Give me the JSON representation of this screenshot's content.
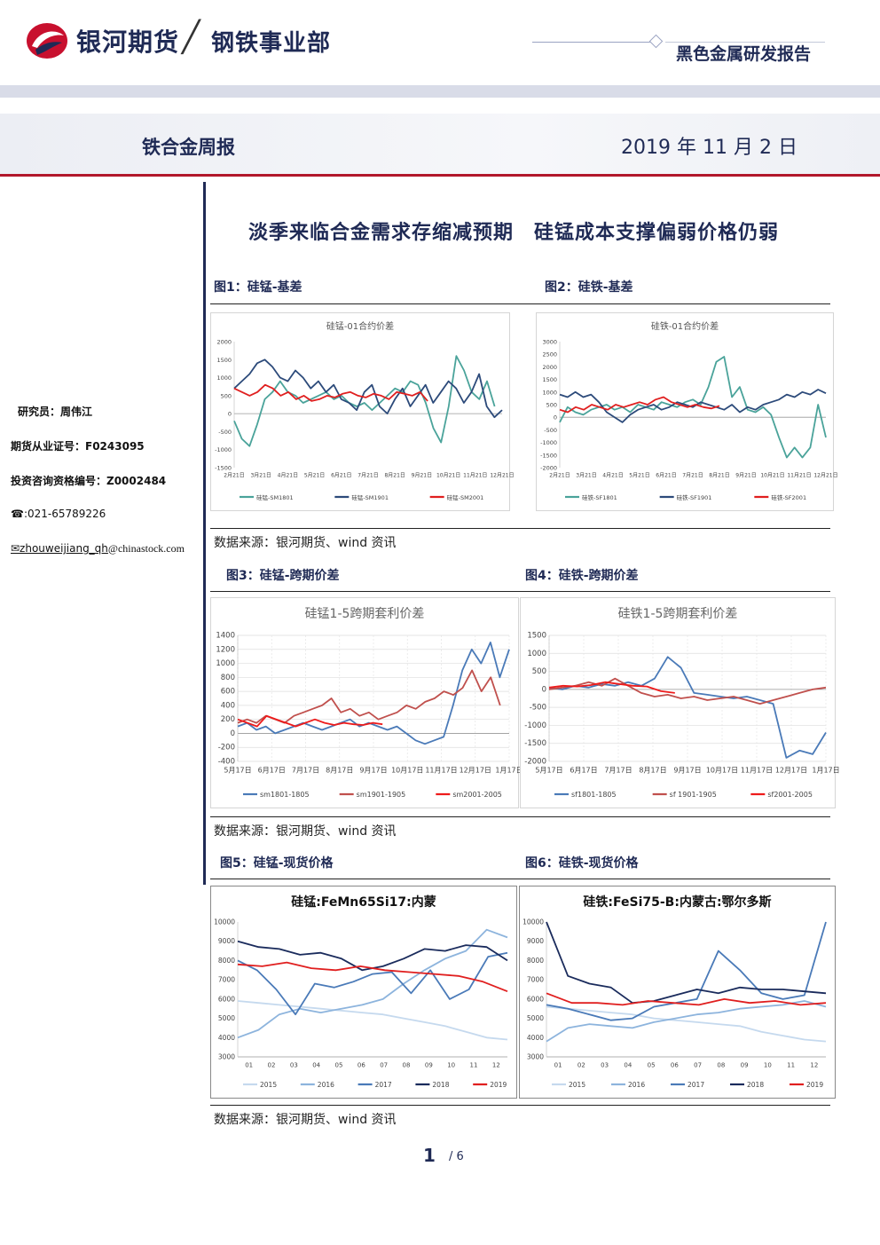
{
  "header": {
    "brand": "银河期货",
    "slash": "╱",
    "department": "钢铁事业部",
    "report_type": "黑色金属研发报告",
    "weekly": "铁合金周报",
    "date": "2019 年 11 月 2 日"
  },
  "sidebar": {
    "researcher": "研究员：周伟江",
    "license": "期货从业证号：F0243095",
    "consult": "投资咨询资格编号：Z0002484",
    "phone": "☎:021-65789226",
    "email_user": "✉zhouweijiang_qh",
    "email_domain": "@chinastock.com"
  },
  "main_title": "淡季来临合金需求存缩减预期　硅锰成本支撑偏弱价格仍弱",
  "figures": {
    "f1": "图1：硅锰-基差",
    "f2": "图2：硅铁-基差",
    "f3": "图3：硅锰-跨期价差",
    "f4": "图4：硅铁-跨期价差",
    "f5": "图5：硅锰-现货价格",
    "f6": "图6：硅铁-现货价格"
  },
  "sources": {
    "s1": "数据来源：银河期货、wind 资讯",
    "s2": "数据来源：银河期货、wind 资讯",
    "s3": "数据来源：银河期货、wind 资讯"
  },
  "page": {
    "current": "1",
    "slash_total": "/ 6"
  },
  "colors": {
    "navy": "#1f2a55",
    "red_rule": "#b2172b"
  },
  "chart_data": [
    {
      "id": "c1",
      "type": "line",
      "title": "硅锰-01合约价差",
      "ylim": [
        -1500,
        2000
      ],
      "yticks": [
        2000,
        1500,
        1000,
        500,
        0,
        -500,
        -1000,
        -1500
      ],
      "xticks": [
        "2月21日",
        "3月21日",
        "4月21日",
        "5月21日",
        "6月21日",
        "7月21日",
        "8月21日",
        "9月21日",
        "10月21日",
        "11月21日",
        "12月21日"
      ],
      "series": [
        {
          "name": "硅锰-SM1801",
          "color": "#4aa39a",
          "values": [
            -200,
            -700,
            -900,
            -300,
            400,
            600,
            900,
            600,
            500,
            300,
            400,
            500,
            600,
            400,
            500,
            300,
            200,
            300,
            100,
            300,
            500,
            700,
            600,
            900,
            800,
            300,
            -400,
            -800,
            200,
            1600,
            1200,
            600,
            400,
            900,
            200
          ]
        },
        {
          "name": "硅锰-SM1901",
          "color": "#2c4a7a",
          "values": [
            700,
            900,
            1100,
            1400,
            1500,
            1300,
            1000,
            900,
            1200,
            1000,
            700,
            900,
            600,
            800,
            400,
            300,
            100,
            600,
            800,
            200,
            0,
            400,
            700,
            200,
            500,
            800,
            300,
            600,
            900,
            700,
            300,
            600,
            1100,
            200,
            -100,
            100
          ]
        },
        {
          "name": "硅锰-SM2001",
          "color": "#e01f1f",
          "values": [
            700,
            600,
            500,
            600,
            800,
            700,
            500,
            600,
            400,
            500,
            350,
            400,
            500,
            450,
            550,
            600,
            500,
            450,
            550,
            500,
            400,
            600,
            550,
            500,
            600,
            350
          ]
        }
      ]
    },
    {
      "id": "c2",
      "type": "line",
      "title": "硅铁-01合约价差",
      "ylim": [
        -2000,
        3000
      ],
      "yticks": [
        3000,
        2500,
        2000,
        1500,
        1000,
        500,
        0,
        -500,
        -1000,
        -1500,
        -2000
      ],
      "xticks": [
        "2月21日",
        "3月21日",
        "4月21日",
        "5月21日",
        "6月21日",
        "7月21日",
        "8月21日",
        "9月21日",
        "10月21日",
        "11月21日",
        "12月21日"
      ],
      "series": [
        {
          "name": "硅铁-SF1801",
          "color": "#4aa39a",
          "values": [
            -200,
            400,
            200,
            100,
            300,
            400,
            500,
            300,
            400,
            200,
            500,
            400,
            300,
            600,
            500,
            400,
            600,
            700,
            500,
            1200,
            2200,
            2400,
            800,
            1200,
            300,
            200,
            400,
            100,
            -800,
            -1600,
            -1200,
            -1600,
            -1200,
            500,
            -800
          ]
        },
        {
          "name": "硅铁-SF1901",
          "color": "#2c4a7a",
          "values": [
            900,
            800,
            1000,
            800,
            900,
            600,
            200,
            0,
            -200,
            100,
            300,
            400,
            500,
            300,
            400,
            600,
            500,
            400,
            600,
            500,
            400,
            300,
            500,
            200,
            400,
            300,
            500,
            600,
            700,
            900,
            800,
            1000,
            900,
            1100,
            950
          ]
        },
        {
          "name": "硅铁-SF2001",
          "color": "#e01f1f",
          "values": [
            300,
            200,
            400,
            300,
            500,
            400,
            300,
            500,
            400,
            500,
            600,
            500,
            700,
            800,
            600,
            500,
            400,
            500,
            400,
            350,
            450
          ]
        }
      ]
    },
    {
      "id": "c3",
      "type": "line",
      "title": "硅锰1-5跨期套利价差",
      "ylim": [
        -400,
        1400
      ],
      "yticks": [
        1400,
        1200,
        1000,
        800,
        600,
        400,
        200,
        0,
        -200,
        -400
      ],
      "xticks": [
        "5月17日",
        "6月17日",
        "7月17日",
        "8月17日",
        "9月17日",
        "10月17日",
        "11月17日",
        "12月17日",
        "1月17日"
      ],
      "series": [
        {
          "name": "sm1801-1805",
          "color": "#4a7ab8",
          "values": [
            100,
            150,
            50,
            100,
            0,
            50,
            100,
            150,
            100,
            50,
            100,
            150,
            200,
            100,
            150,
            100,
            50,
            100,
            0,
            -100,
            -150,
            -100,
            -50,
            400,
            900,
            1200,
            1000,
            1300,
            800,
            1200
          ]
        },
        {
          "name": "sm1901-1905",
          "color": "#c0504d",
          "values": [
            150,
            200,
            150,
            250,
            200,
            150,
            250,
            300,
            350,
            400,
            500,
            300,
            350,
            250,
            300,
            200,
            250,
            300,
            400,
            350,
            450,
            500,
            600,
            550,
            650,
            900,
            600,
            800,
            400
          ]
        },
        {
          "name": "sm2001-2005",
          "color": "#ee1b1b",
          "values": [
            200,
            150,
            100,
            250,
            200,
            150,
            100,
            150,
            200,
            150,
            120,
            150,
            130,
            120,
            150,
            130
          ]
        }
      ]
    },
    {
      "id": "c4",
      "type": "line",
      "title": "硅铁1-5跨期套利价差",
      "ylim": [
        -2000,
        1500
      ],
      "yticks": [
        1500,
        1000,
        500,
        0,
        -500,
        -1000,
        -1500,
        -2000
      ],
      "xticks": [
        "5月17日",
        "6月17日",
        "7月17日",
        "8月17日",
        "9月17日",
        "10月17日",
        "11月17日",
        "12月17日",
        "1月17日"
      ],
      "series": [
        {
          "name": "sf1801-1805",
          "color": "#4a7ab8",
          "values": [
            50,
            0,
            100,
            50,
            150,
            100,
            200,
            100,
            300,
            900,
            600,
            -100,
            -150,
            -200,
            -250,
            -200,
            -300,
            -400,
            -1900,
            -1700,
            -1800,
            -1200
          ]
        },
        {
          "name": "sf 1901-1905",
          "color": "#c0504d",
          "values": [
            0,
            50,
            100,
            200,
            100,
            300,
            100,
            -100,
            -200,
            -150,
            -250,
            -200,
            -300,
            -250,
            -200,
            -300,
            -400,
            -300,
            -200,
            -100,
            0,
            50
          ]
        },
        {
          "name": "sf2001-2005",
          "color": "#ee1b1b",
          "values": [
            50,
            100,
            80,
            120,
            200,
            150,
            100,
            80,
            -50,
            -100
          ]
        }
      ]
    },
    {
      "id": "c5",
      "type": "line",
      "title": "硅锰:FeMn65Si17:内蒙",
      "ylim": [
        3000,
        10000
      ],
      "yticks": [
        10000,
        9000,
        8000,
        7000,
        6000,
        5000,
        4000,
        3000
      ],
      "xticks": [
        "01",
        "02",
        "03",
        "04",
        "05",
        "06",
        "07",
        "08",
        "09",
        "10",
        "11",
        "12"
      ],
      "series": [
        {
          "name": "2015",
          "color": "#c5d9ee",
          "values": [
            5900,
            5800,
            5700,
            5600,
            5500,
            5400,
            5300,
            5200,
            5000,
            4800,
            4600,
            4300,
            4000,
            3900
          ]
        },
        {
          "name": "2016",
          "color": "#8db4dd",
          "values": [
            4000,
            4400,
            5200,
            5500,
            5300,
            5500,
            5700,
            6000,
            6800,
            7500,
            8100,
            8500,
            9600,
            9200
          ]
        },
        {
          "name": "2017",
          "color": "#4a7ab8",
          "values": [
            8000,
            7500,
            6500,
            5200,
            6800,
            6600,
            6900,
            7300,
            7400,
            6300,
            7500,
            6000,
            6500,
            8200,
            8400
          ]
        },
        {
          "name": "2018",
          "color": "#1a2b5c",
          "values": [
            9000,
            8700,
            8600,
            8300,
            8400,
            8100,
            7500,
            7700,
            8100,
            8600,
            8500,
            8800,
            8700,
            8000
          ]
        },
        {
          "name": "2019",
          "color": "#e01f1f",
          "values": [
            7800,
            7700,
            7900,
            7600,
            7500,
            7700,
            7500,
            7400,
            7300,
            7200,
            6900,
            6400
          ]
        }
      ]
    },
    {
      "id": "c6",
      "type": "line",
      "title": "硅铁:FeSi75-B:内蒙古:鄂尔多斯",
      "ylim": [
        3000,
        10000
      ],
      "yticks": [
        10000,
        9000,
        8000,
        7000,
        6000,
        5000,
        4000,
        3000
      ],
      "xticks": [
        "01",
        "02",
        "03",
        "04",
        "05",
        "06",
        "07",
        "08",
        "09",
        "10",
        "11",
        "12"
      ],
      "series": [
        {
          "name": "2015",
          "color": "#c5d9ee",
          "values": [
            5600,
            5500,
            5400,
            5300,
            5200,
            5000,
            4900,
            4800,
            4700,
            4600,
            4300,
            4100,
            3900,
            3800
          ]
        },
        {
          "name": "2016",
          "color": "#8db4dd",
          "values": [
            3800,
            4500,
            4700,
            4600,
            4500,
            4800,
            5000,
            5200,
            5300,
            5500,
            5600,
            5700,
            5900,
            5600
          ]
        },
        {
          "name": "2017",
          "color": "#4a7ab8",
          "values": [
            5700,
            5500,
            5200,
            4900,
            5000,
            5600,
            5800,
            6000,
            8500,
            7500,
            6300,
            6000,
            6200,
            10000
          ]
        },
        {
          "name": "2018",
          "color": "#1a2b5c",
          "values": [
            10000,
            7200,
            6800,
            6600,
            5800,
            5900,
            6200,
            6500,
            6300,
            6600,
            6500,
            6500,
            6400,
            6300
          ]
        },
        {
          "name": "2019",
          "color": "#e01f1f",
          "values": [
            6300,
            5800,
            5800,
            5700,
            5900,
            5800,
            5700,
            6000,
            5800,
            5900,
            5700,
            5800
          ]
        }
      ]
    }
  ]
}
